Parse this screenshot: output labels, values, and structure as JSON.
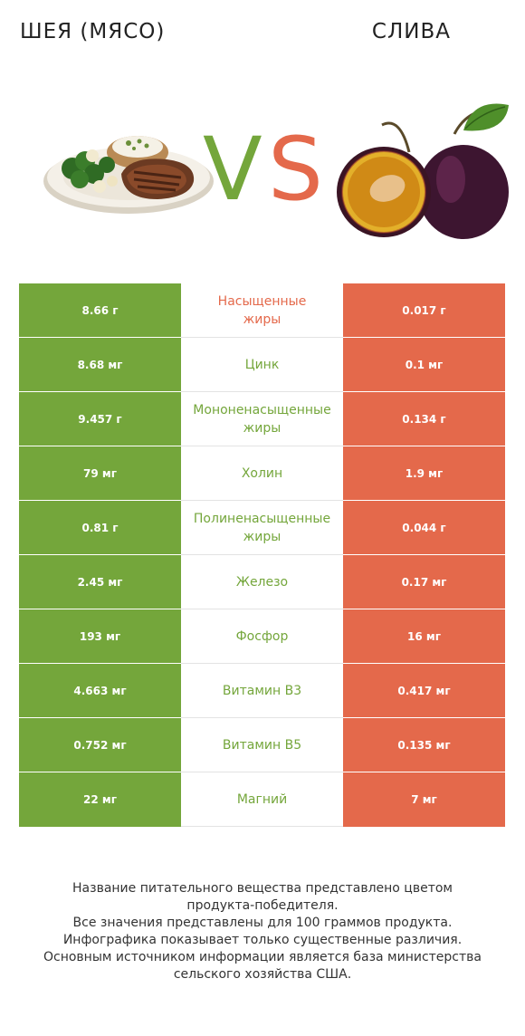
{
  "header": {
    "left_title": "ШЕЯ (МЯСО)",
    "right_title": "СЛИВА",
    "vs_v": "V",
    "vs_s": "S"
  },
  "colors": {
    "left": "#74a63b",
    "right": "#e4694b"
  },
  "rows": [
    {
      "left": "8.66 г",
      "label": "Насыщенные\nжиры",
      "right": "0.017 г",
      "winner": "right"
    },
    {
      "left": "8.68 мг",
      "label": "Цинк",
      "right": "0.1 мг",
      "winner": "left"
    },
    {
      "left": "9.457 г",
      "label": "Мононенасыщенные\nжиры",
      "right": "0.134 г",
      "winner": "left"
    },
    {
      "left": "79 мг",
      "label": "Холин",
      "right": "1.9 мг",
      "winner": "left"
    },
    {
      "left": "0.81 г",
      "label": "Полиненасыщенные\nжиры",
      "right": "0.044 г",
      "winner": "left"
    },
    {
      "left": "2.45 мг",
      "label": "Железо",
      "right": "0.17 мг",
      "winner": "left"
    },
    {
      "left": "193 мг",
      "label": "Фосфор",
      "right": "16 мг",
      "winner": "left"
    },
    {
      "left": "4.663 мг",
      "label": "Витамин B3",
      "right": "0.417 мг",
      "winner": "left"
    },
    {
      "left": "0.752 мг",
      "label": "Витамин B5",
      "right": "0.135 мг",
      "winner": "left"
    },
    {
      "left": "22 мг",
      "label": "Магний",
      "right": "7 мг",
      "winner": "left"
    }
  ],
  "footer": {
    "line1": "Название питательного вещества представлено цветом",
    "line2": "продукта-победителя.",
    "line3": "Все значения представлены для 100 граммов продукта.",
    "line4": "Инфографика показывает только существенные различия.",
    "line5": "Основным источником информации является база министерства",
    "line6": "сельского хозяйства США."
  }
}
